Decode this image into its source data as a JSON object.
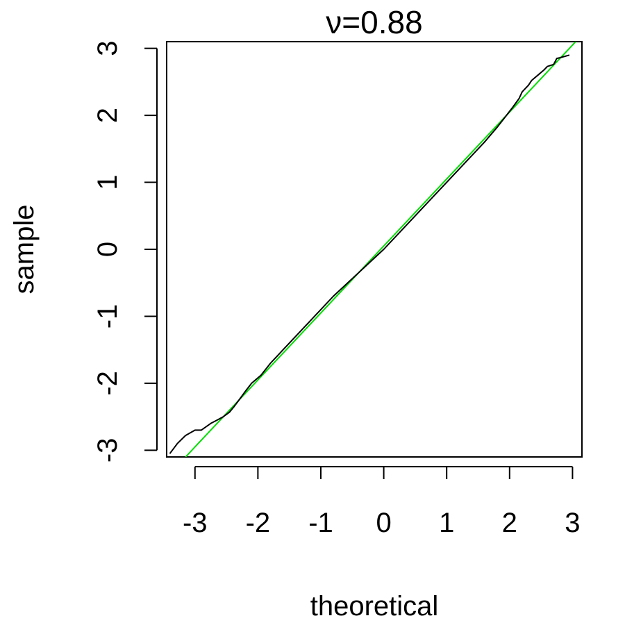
{
  "chart_data": {
    "type": "line",
    "title": "ν=0.88",
    "xlabel": "theoretical",
    "ylabel": "sample",
    "xlim": [
      -3.45,
      3.15
    ],
    "ylim": [
      -3.1,
      3.1
    ],
    "xticks": [
      -3,
      -2,
      -1,
      0,
      1,
      2,
      3
    ],
    "yticks": [
      -3,
      -2,
      -1,
      0,
      1,
      2,
      3
    ],
    "xtick_labels": [
      "-3",
      "-2",
      "-1",
      "0",
      "1",
      "2",
      "3"
    ],
    "ytick_labels": [
      "-3",
      "-2",
      "-1",
      "0",
      "1",
      "2",
      "3"
    ],
    "grid": false,
    "legend": "none",
    "series": [
      {
        "role": "qq-curve",
        "color": "#000000",
        "x": [
          -3.4,
          -3.28,
          -3.15,
          -3.0,
          -2.9,
          -2.75,
          -2.65,
          -2.55,
          -2.45,
          -2.38,
          -2.3,
          -2.2,
          -2.1,
          -1.95,
          -1.8,
          -1.6,
          -1.2,
          -0.8,
          -0.4,
          0.0,
          0.4,
          0.8,
          1.2,
          1.6,
          1.8,
          1.95,
          2.05,
          2.15,
          2.2,
          2.3,
          2.35,
          2.45,
          2.55,
          2.6,
          2.7,
          2.75,
          2.8,
          2.95
        ],
        "y": [
          -3.05,
          -2.9,
          -2.78,
          -2.7,
          -2.7,
          -2.6,
          -2.55,
          -2.5,
          -2.43,
          -2.35,
          -2.25,
          -2.12,
          -2.0,
          -1.88,
          -1.7,
          -1.5,
          -1.1,
          -0.7,
          -0.35,
          0.0,
          0.4,
          0.8,
          1.2,
          1.6,
          1.82,
          2.0,
          2.12,
          2.25,
          2.35,
          2.45,
          2.52,
          2.6,
          2.68,
          2.73,
          2.76,
          2.85,
          2.86,
          2.9
        ]
      },
      {
        "role": "reference-line",
        "color": "#00dd00",
        "x": [
          -3.15,
          3.1
        ],
        "y": [
          -3.1,
          3.15
        ]
      }
    ]
  }
}
